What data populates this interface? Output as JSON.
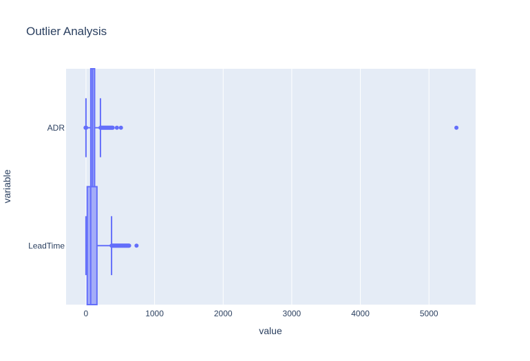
{
  "chart_data": {
    "type": "box",
    "title": "Outlier Analysis",
    "xlabel": "value",
    "ylabel": "variable",
    "xlim": [
      -290,
      5680
    ],
    "xticks": [
      0,
      1000,
      2000,
      3000,
      4000,
      5000
    ],
    "xtick_labels": [
      "0",
      "1000",
      "2000",
      "3000",
      "4000",
      "5000"
    ],
    "grid": true,
    "orientation": "horizontal",
    "colors": {
      "box": "#636efa",
      "fill": "#636efa",
      "plot_bg": "#e5ecf6",
      "grid": "#ffffff",
      "text": "#2a3f5f"
    },
    "categories": [
      "ADR",
      "LeadTime"
    ],
    "boxes": [
      {
        "category": "ADR",
        "min": 0,
        "q1": 70,
        "median": 95,
        "q3": 126,
        "max": 211,
        "lower_fence": 0,
        "upper_fence": 211,
        "outliers": [
          -6,
          -3,
          0,
          0,
          0,
          212,
          218,
          225,
          232,
          240,
          248,
          255,
          262,
          270,
          278,
          285,
          292,
          300,
          308,
          315,
          322,
          330,
          338,
          345,
          352,
          360,
          368,
          375,
          382,
          390,
          451,
          510,
          5400
        ]
      },
      {
        "category": "LeadTime",
        "min": 0,
        "q1": 18,
        "median": 69,
        "q3": 160,
        "max": 373,
        "lower_fence": 0,
        "upper_fence": 373,
        "outliers": [
          374,
          380,
          386,
          392,
          398,
          404,
          410,
          416,
          422,
          428,
          434,
          440,
          446,
          452,
          458,
          464,
          470,
          476,
          482,
          488,
          494,
          500,
          506,
          512,
          518,
          524,
          530,
          536,
          542,
          548,
          554,
          560,
          566,
          572,
          578,
          584,
          590,
          596,
          602,
          608,
          614,
          620,
          626,
          629,
          737
        ]
      }
    ]
  }
}
